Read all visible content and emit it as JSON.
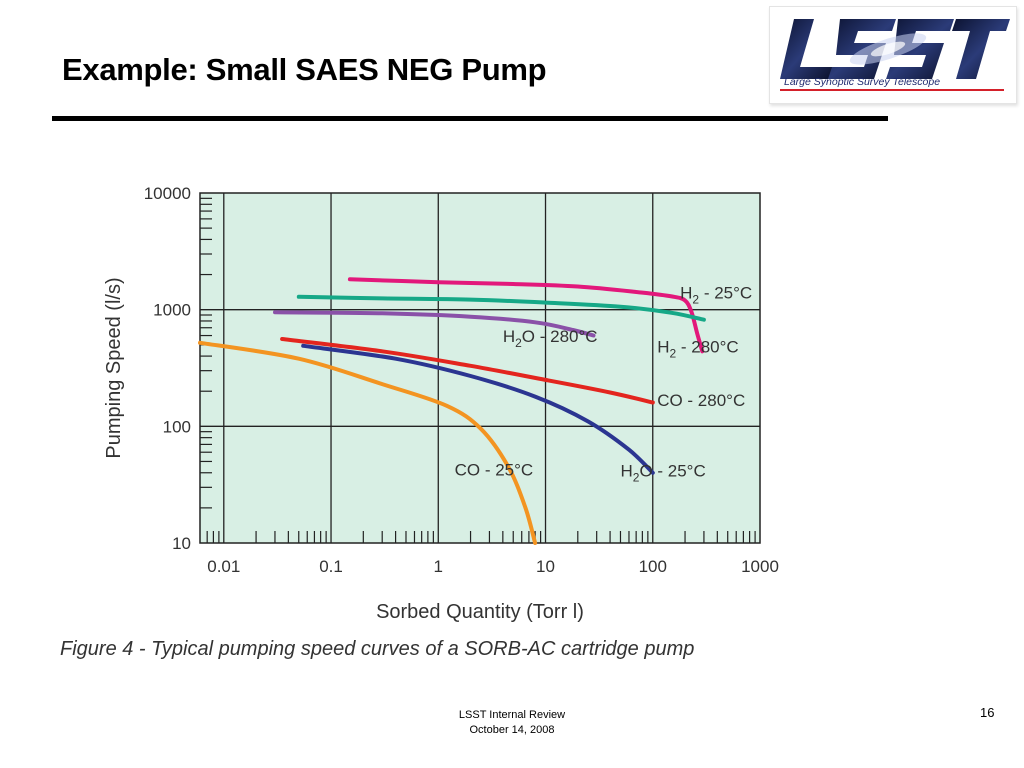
{
  "slide": {
    "title": "Example:  Small SAES NEG Pump",
    "number": "16"
  },
  "logo": {
    "wordmark": "LSST",
    "tagline": "Large Synoptic Survey Telescope"
  },
  "footer": {
    "line1": "LSST Internal Review",
    "line2": "October 14, 2008"
  },
  "colors": {
    "plot_background": "#d8efe4",
    "H2_25C": "#e2187b",
    "H2_280C": "#16a887",
    "H2O_280C": "#8a51a8",
    "CO_280C": "#e3251e",
    "H2O_25C": "#2b3591",
    "CO_25C": "#f39421"
  },
  "chart_data": {
    "type": "line",
    "x_scale": "log",
    "y_scale": "log",
    "xlim": [
      0.006,
      1000
    ],
    "ylim": [
      10,
      10000
    ],
    "xlabel": "Sorbed Quantity (Torr l)",
    "ylabel": "Pumping Speed (l/s)",
    "caption": "Figure 4 - Typical pumping speed curves of a SORB-AC cartridge pump",
    "x_ticks": [
      {
        "value": 0.01,
        "label": "0.01"
      },
      {
        "value": 0.1,
        "label": "0.1"
      },
      {
        "value": 1,
        "label": "1"
      },
      {
        "value": 10,
        "label": "10"
      },
      {
        "value": 100,
        "label": "100"
      },
      {
        "value": 1000,
        "label": "1000"
      }
    ],
    "y_ticks": [
      {
        "value": 10,
        "label": "10"
      },
      {
        "value": 100,
        "label": "100"
      },
      {
        "value": 1000,
        "label": "1000"
      },
      {
        "value": 10000,
        "label": "10000"
      }
    ],
    "grid": true,
    "series": [
      {
        "name": "H2 - 25°C",
        "label_parts": [
          "H",
          "2",
          " - 25°C"
        ],
        "color_key": "H2_25C",
        "label_at": [
          180,
          1250
        ],
        "points": [
          [
            0.15,
            1820
          ],
          [
            1,
            1720
          ],
          [
            5,
            1660
          ],
          [
            20,
            1580
          ],
          [
            80,
            1400
          ],
          [
            150,
            1300
          ],
          [
            200,
            1200
          ],
          [
            230,
            950
          ],
          [
            260,
            620
          ],
          [
            290,
            440
          ]
        ]
      },
      {
        "name": "H2 - 280°C",
        "label_parts": [
          "H",
          "2",
          " - 280°C"
        ],
        "color_key": "H2_280C",
        "label_at": [
          110,
          430
        ],
        "points": [
          [
            0.05,
            1290
          ],
          [
            0.3,
            1250
          ],
          [
            2,
            1220
          ],
          [
            10,
            1150
          ],
          [
            50,
            1060
          ],
          [
            150,
            940
          ],
          [
            300,
            820
          ]
        ]
      },
      {
        "name": "H2O - 280°C",
        "label_parts": [
          "H",
          "2",
          "O - 280°C"
        ],
        "color_key": "H2O_280C",
        "label_at": [
          4,
          530
        ],
        "points": [
          [
            0.03,
            950
          ],
          [
            0.3,
            930
          ],
          [
            2,
            870
          ],
          [
            8,
            780
          ],
          [
            18,
            670
          ],
          [
            28,
            600
          ]
        ]
      },
      {
        "name": "CO - 280°C",
        "label_parts": [
          "CO - 280°C"
        ],
        "color_key": "CO_280C",
        "label_at": [
          110,
          150
        ],
        "points": [
          [
            0.035,
            560
          ],
          [
            0.3,
            440
          ],
          [
            2,
            330
          ],
          [
            10,
            250
          ],
          [
            40,
            195
          ],
          [
            100,
            160
          ]
        ]
      },
      {
        "name": "H2O - 25°C",
        "label_parts": [
          "H",
          "2",
          "O - 25°C"
        ],
        "color_key": "H2O_25C",
        "label_at": [
          50,
          37
        ],
        "points": [
          [
            0.055,
            490
          ],
          [
            0.4,
            380
          ],
          [
            2,
            270
          ],
          [
            8,
            180
          ],
          [
            25,
            110
          ],
          [
            60,
            63
          ],
          [
            100,
            40
          ]
        ]
      },
      {
        "name": "CO - 25°C",
        "label_parts": [
          "CO - 25°C"
        ],
        "color_key": "CO_25C",
        "label_at": [
          1.42,
          38
        ],
        "points": [
          [
            0.006,
            520
          ],
          [
            0.05,
            380
          ],
          [
            0.3,
            230
          ],
          [
            1.2,
            150
          ],
          [
            2.5,
            95
          ],
          [
            4.5,
            45
          ],
          [
            6.5,
            20
          ],
          [
            8,
            10
          ]
        ]
      }
    ]
  }
}
